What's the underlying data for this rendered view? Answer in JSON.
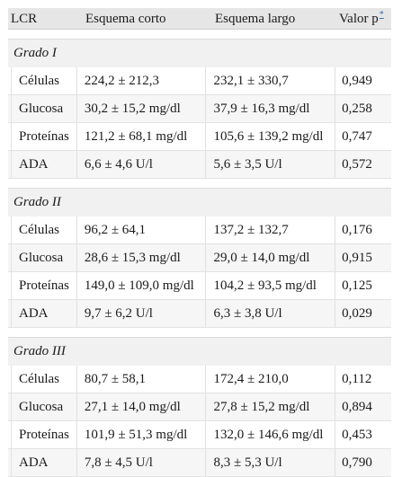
{
  "header": {
    "col1": "LCR",
    "col2": "Esquema corto",
    "col3": "Esquema largo",
    "col4": "Valor p",
    "col4_footnote": "*"
  },
  "groups": [
    {
      "title": "Grado I",
      "rows": [
        {
          "label": "Células",
          "corto": "224,2 ± 212,3",
          "largo": "232,1 ± 330,7",
          "p": "0,949"
        },
        {
          "label": "Glucosa",
          "corto": "30,2 ± 15,2 mg/dl",
          "largo": "37,9 ± 16,3 mg/dl",
          "p": "0,258"
        },
        {
          "label": "Proteínas",
          "corto": "121,2 ± 68,1 mg/dl",
          "largo": "105,6 ± 139,2 mg/dl",
          "p": "0,747"
        },
        {
          "label": "ADA",
          "corto": "6,6 ± 4,6 U/l",
          "largo": "5,6 ± 3,5 U/l",
          "p": "0,572"
        }
      ]
    },
    {
      "title": "Grado II",
      "rows": [
        {
          "label": "Células",
          "corto": "96,2 ± 64,1",
          "largo": "137,2 ± 132,7",
          "p": "0,176"
        },
        {
          "label": "Glucosa",
          "corto": "28,6 ± 15,3 mg/dl",
          "largo": "29,0 ± 14,0 mg/dl",
          "p": "0,915"
        },
        {
          "label": "Proteínas",
          "corto": "149,0 ± 109,0 mg/dl",
          "largo": "104,2 ± 93,5 mg/dl",
          "p": "0,125"
        },
        {
          "label": "ADA",
          "corto": "9,7 ± 6,2 U/l",
          "largo": "6,3 ± 3,8 U/l",
          "p": "0,029"
        }
      ]
    },
    {
      "title": "Grado III",
      "rows": [
        {
          "label": "Células",
          "corto": "80,7 ± 58,1",
          "largo": "172,4 ± 210,0",
          "p": "0,112"
        },
        {
          "label": "Glucosa",
          "corto": "27,1 ± 14,0 mg/dl",
          "largo": "27,8 ± 15,2 mg/dl",
          "p": "0,894"
        },
        {
          "label": "Proteínas",
          "corto": "101,9 ± 51,3 mg/dl",
          "largo": "132,0 ± 146,6 mg/dl",
          "p": "0,453"
        },
        {
          "label": "ADA",
          "corto": "7,8 ± 4,5 U/l",
          "largo": "8,3 ± 5,3 U/l",
          "p": "0,790"
        }
      ]
    }
  ]
}
